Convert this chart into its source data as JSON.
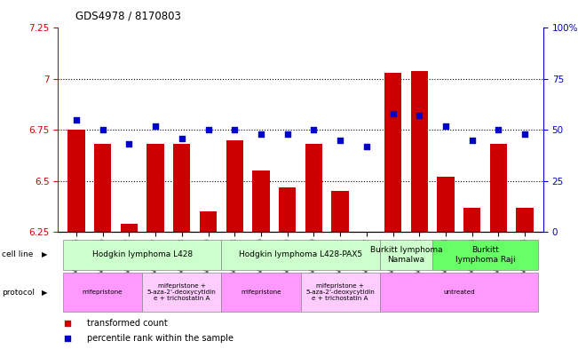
{
  "title": "GDS4978 / 8170803",
  "samples": [
    "GSM1081175",
    "GSM1081176",
    "GSM1081177",
    "GSM1081187",
    "GSM1081188",
    "GSM1081189",
    "GSM1081178",
    "GSM1081179",
    "GSM1081180",
    "GSM1081190",
    "GSM1081191",
    "GSM1081192",
    "GSM1081181",
    "GSM1081182",
    "GSM1081183",
    "GSM1081184",
    "GSM1081185",
    "GSM1081186"
  ],
  "bar_values": [
    6.75,
    6.68,
    6.29,
    6.68,
    6.68,
    6.35,
    6.7,
    6.55,
    6.47,
    6.68,
    6.45,
    6.25,
    7.03,
    7.04,
    6.52,
    6.37,
    6.68,
    6.37
  ],
  "percentile_values": [
    55,
    50,
    43,
    52,
    46,
    50,
    50,
    48,
    48,
    50,
    45,
    42,
    58,
    57,
    52,
    45,
    50,
    48
  ],
  "bar_color": "#cc0000",
  "percentile_color": "#0000cc",
  "ymin": 6.25,
  "ymax": 7.25,
  "yticks": [
    6.25,
    6.5,
    6.75,
    7.0,
    7.25
  ],
  "ytick_labels": [
    "6.25",
    "6.5",
    "6.75",
    "7",
    "7.25"
  ],
  "right_yticks": [
    0,
    25,
    50,
    75,
    100
  ],
  "right_ytick_labels": [
    "0",
    "25",
    "50",
    "75",
    "100%"
  ],
  "cell_line_groups": [
    {
      "label": "Hodgkin lymphoma L428",
      "start": 0,
      "end": 6,
      "color": "#ccffcc"
    },
    {
      "label": "Hodgkin lymphoma L428-PAX5",
      "start": 6,
      "end": 12,
      "color": "#ccffcc"
    },
    {
      "label": "Burkitt lymphoma\nNamalwa",
      "start": 12,
      "end": 14,
      "color": "#ccffcc"
    },
    {
      "label": "Burkitt\nlymphoma Raji",
      "start": 14,
      "end": 18,
      "color": "#66ff66"
    }
  ],
  "protocol_groups": [
    {
      "label": "mifepristone",
      "start": 0,
      "end": 3,
      "color": "#ff99ff"
    },
    {
      "label": "mifepristone +\n5-aza-2'-deoxycytidin\ne + trichostatin A",
      "start": 3,
      "end": 6,
      "color": "#ffccff"
    },
    {
      "label": "mifepristone",
      "start": 6,
      "end": 9,
      "color": "#ff99ff"
    },
    {
      "label": "mifepristone +\n5-aza-2'-deoxycytidin\ne + trichostatin A",
      "start": 9,
      "end": 12,
      "color": "#ffccff"
    },
    {
      "label": "untreated",
      "start": 12,
      "end": 18,
      "color": "#ff99ff"
    }
  ],
  "legend_bar_label": "transformed count",
  "legend_pct_label": "percentile rank within the sample"
}
